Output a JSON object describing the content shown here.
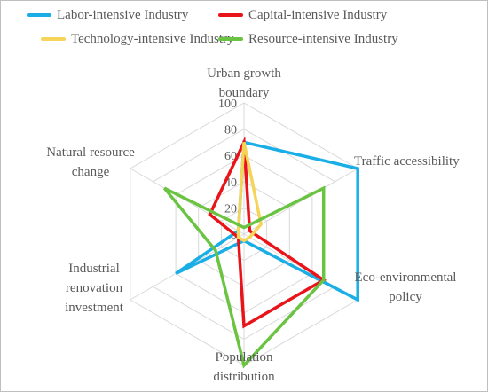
{
  "chart_data": {
    "type": "radar",
    "title": "",
    "axes": [
      [
        "Urban growth",
        "boundary"
      ],
      [
        "Traffic accessibility"
      ],
      [
        "Eco-environmental",
        "policy"
      ],
      [
        "Population",
        "distribution"
      ],
      [
        "Industrial",
        "renovation",
        "investment"
      ],
      [
        "Natural resource",
        "change"
      ]
    ],
    "rlim": [
      0,
      100
    ],
    "ticks": [
      "0",
      "20",
      "40",
      "60",
      "80",
      "100"
    ],
    "tick_values": [
      0,
      20,
      40,
      60,
      80,
      100
    ],
    "grid": true,
    "legend_position": "top",
    "series": [
      {
        "name": "Labor-intensive Industry",
        "color": "#19aee6",
        "values": [
          70,
          100,
          100,
          5,
          60,
          5
        ]
      },
      {
        "name": "Capital-intensive Industry",
        "color": "#e8141a",
        "values": [
          70,
          5,
          70,
          70,
          5,
          30
        ]
      },
      {
        "name": "Technology-intensive Industry",
        "color": "#f5d45a",
        "values": [
          70,
          15,
          5,
          5,
          5,
          5
        ]
      },
      {
        "name": "Resource-intensive Industry",
        "color": "#6ac442",
        "values": [
          5,
          70,
          70,
          100,
          25,
          70
        ]
      }
    ]
  }
}
